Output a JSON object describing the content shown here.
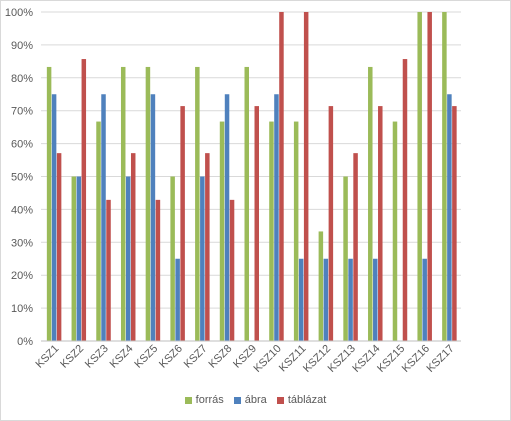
{
  "chart_data": {
    "type": "bar",
    "categories": [
      "KSZ1",
      "KSZ2",
      "KSZ3",
      "KSZ4",
      "KSZ5",
      "KSZ6",
      "KSZ7",
      "KSZ8",
      "KSZ9",
      "KSZ10",
      "KSZ11",
      "KSZ12",
      "KSZ13",
      "KSZ14",
      "KSZ15",
      "KSZ16",
      "KSZ17"
    ],
    "series": [
      {
        "name": "forrás",
        "color": "#9bbb59",
        "values": [
          83.3,
          50,
          66.7,
          83.3,
          83.3,
          50,
          83.3,
          66.7,
          83.3,
          66.7,
          66.7,
          33.3,
          50,
          83.3,
          66.7,
          100,
          100
        ]
      },
      {
        "name": "ábra",
        "color": "#4f81bd",
        "values": [
          75,
          50,
          75,
          50,
          75,
          25,
          50,
          75,
          0,
          75,
          25,
          25,
          25,
          25,
          0,
          25,
          75
        ]
      },
      {
        "name": "táblázat",
        "color": "#c0504d",
        "values": [
          57.1,
          85.7,
          42.9,
          57.1,
          42.9,
          71.4,
          57.1,
          42.9,
          71.4,
          100,
          100,
          71.4,
          57.1,
          71.4,
          85.7,
          100,
          71.4
        ]
      }
    ],
    "yticks": [
      "0%",
      "10%",
      "20%",
      "30%",
      "40%",
      "50%",
      "60%",
      "70%",
      "80%",
      "90%",
      "100%"
    ],
    "ylim": [
      0,
      100
    ],
    "grid": true,
    "legend": "bottom"
  }
}
